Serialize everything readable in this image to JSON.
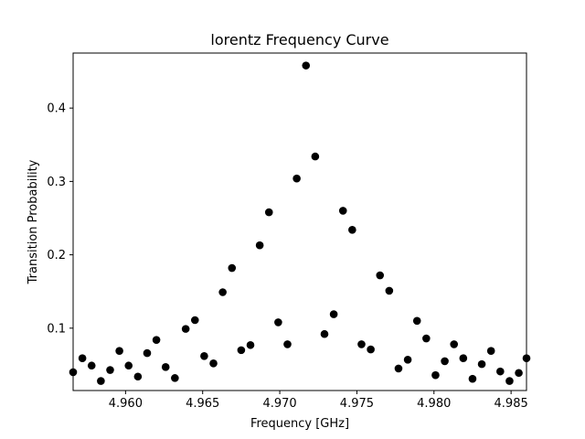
{
  "chart_data": {
    "type": "scatter",
    "title": "lorentz Frequency Curve",
    "xlabel": "Frequency [GHz]",
    "ylabel": "Transition Probability",
    "xlim": [
      4.9566,
      4.986
    ],
    "ylim": [
      0.015,
      0.475
    ],
    "xticks": [
      4.96,
      4.965,
      4.97,
      4.975,
      4.98,
      4.985
    ],
    "xtick_labels": [
      "4.960",
      "4.965",
      "4.970",
      "4.975",
      "4.980",
      "4.985"
    ],
    "yticks": [
      0.1,
      0.2,
      0.3,
      0.4
    ],
    "ytick_labels": [
      "0.1",
      "0.2",
      "0.3",
      "0.4"
    ],
    "grid": false,
    "marker_color": "#000000",
    "x": [
      4.9566,
      4.9572,
      4.9578,
      4.9584,
      4.959,
      4.9596,
      4.9602,
      4.9608,
      4.9614,
      4.962,
      4.9626,
      4.9632,
      4.9639,
      4.9645,
      4.9651,
      4.9657,
      4.9663,
      4.9669,
      4.9675,
      4.9681,
      4.9687,
      4.9693,
      4.9699,
      4.9705,
      4.9711,
      4.9717,
      4.9723,
      4.9729,
      4.9735,
      4.9741,
      4.9747,
      4.9753,
      4.9759,
      4.9765,
      4.9771,
      4.9777,
      4.9783,
      4.9789,
      4.9795,
      4.9801,
      4.9807,
      4.9813,
      4.9819,
      4.9825,
      4.9831,
      4.9837,
      4.9843,
      4.9849,
      4.9855,
      4.986
    ],
    "y": [
      0.04,
      0.059,
      0.049,
      0.028,
      0.043,
      0.069,
      0.049,
      0.034,
      0.066,
      0.084,
      0.047,
      0.032,
      0.099,
      0.111,
      0.062,
      0.052,
      0.149,
      0.182,
      0.07,
      0.077,
      0.213,
      0.258,
      0.108,
      0.078,
      0.304,
      0.458,
      0.334,
      0.092,
      0.119,
      0.26,
      0.234,
      0.078,
      0.071,
      0.172,
      0.151,
      0.045,
      0.057,
      0.11,
      0.086,
      0.036,
      0.055,
      0.078,
      0.059,
      0.031,
      0.051,
      0.069,
      0.041,
      0.028,
      0.039,
      0.059
    ]
  }
}
